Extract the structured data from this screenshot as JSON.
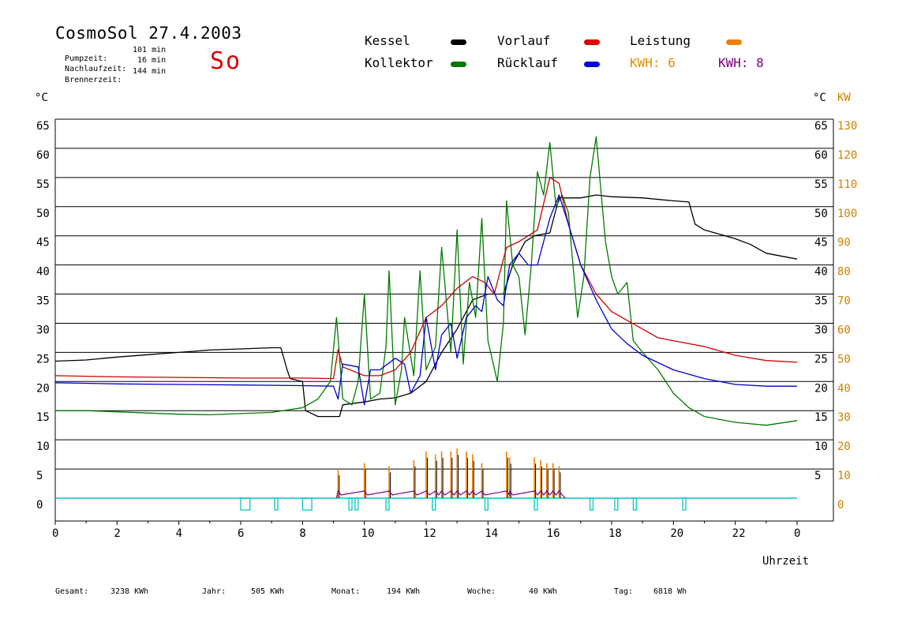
{
  "header": {
    "title": "CosmoSol 27.4.2003",
    "day": "So",
    "pumpzeit_label": "Pumpzeit:",
    "pumpzeit_value": "101 min",
    "nachlaufzeit_label": "Nachlaufzeit:",
    "nachlaufzeit_value": "16 min",
    "brennerzeit_label": "Brennerzeit:",
    "brennerzeit_value": "144 min"
  },
  "legend": {
    "kessel": "Kessel",
    "kollektor": "Kollektor",
    "vorlauf": "Vorlauf",
    "ruecklauf": "Rücklauf",
    "leistung": "Leistung",
    "kwh_orange": "KWH: 6",
    "kwh_purple": "KWH: 8"
  },
  "colors": {
    "kessel": "#000000",
    "kollektor": "#007a00",
    "vorlauf": "#cc0000",
    "ruecklauf": "#0000cc",
    "leistung": "#f08000",
    "kwh_purple": "#800080",
    "pump": "#00c8c8",
    "kw_axis": "#d08000"
  },
  "footer": {
    "gesamt_label": "Gesamt:",
    "gesamt_value": "3238 KWh",
    "jahr_label": "Jahr:",
    "jahr_value": "505 KWh",
    "monat_label": "Monat:",
    "monat_value": "194 KWh",
    "woche_label": "Woche:",
    "woche_value": "40 KWh",
    "tag_label": "Tag:",
    "tag_value": "6818 Wh"
  },
  "chart_data": {
    "type": "line",
    "xlabel": "Uhrzeit",
    "ylabel_left": "°C",
    "ylabel_right_c": "°C",
    "ylabel_right_kw": "KW",
    "xlim": [
      0,
      24
    ],
    "ylim": [
      0,
      65
    ],
    "x_ticks": [
      "0",
      "2",
      "4",
      "6",
      "8",
      "10",
      "12",
      "14",
      "16",
      "18",
      "20",
      "22",
      "0"
    ],
    "y_ticks_left": [
      "0",
      "5",
      "10",
      "15",
      "20",
      "25",
      "30",
      "35",
      "40",
      "45",
      "50",
      "55",
      "60",
      "65"
    ],
    "y_ticks_right_c": [
      "5",
      "10",
      "15",
      "20",
      "25",
      "30",
      "35",
      "40",
      "45",
      "50",
      "55",
      "60",
      "65"
    ],
    "y_ticks_right_kw": [
      "0",
      "10",
      "20",
      "30",
      "40",
      "50",
      "60",
      "70",
      "80",
      "90",
      "100",
      "110",
      "120",
      "130"
    ],
    "grid": true,
    "legend_position": "top",
    "series": [
      {
        "name": "Kessel",
        "color": "#000000",
        "points": [
          [
            0,
            23.5
          ],
          [
            1,
            23.7
          ],
          [
            2,
            24.2
          ],
          [
            3,
            24.6
          ],
          [
            4,
            25
          ],
          [
            5,
            25.4
          ],
          [
            6,
            25.6
          ],
          [
            7,
            25.8
          ],
          [
            7.3,
            25.8
          ],
          [
            7.5,
            22
          ],
          [
            7.6,
            20.5
          ],
          [
            8,
            20
          ],
          [
            8.1,
            15
          ],
          [
            8.5,
            14
          ],
          [
            9.2,
            14
          ],
          [
            9.3,
            16
          ],
          [
            10,
            16.5
          ],
          [
            10.5,
            17
          ],
          [
            11,
            17.2
          ],
          [
            11.5,
            18
          ],
          [
            12,
            20
          ],
          [
            12.5,
            25
          ],
          [
            13,
            29
          ],
          [
            13.5,
            34
          ],
          [
            14,
            35
          ],
          [
            14.5,
            35
          ],
          [
            14.8,
            40
          ],
          [
            15.2,
            44
          ],
          [
            15.5,
            45
          ],
          [
            16,
            45.5
          ],
          [
            16.3,
            51.5
          ],
          [
            17,
            51.5
          ],
          [
            17.5,
            52
          ],
          [
            18,
            51.7
          ],
          [
            19,
            51.5
          ],
          [
            20,
            51
          ],
          [
            20.5,
            50.8
          ],
          [
            20.7,
            47
          ],
          [
            21,
            46
          ],
          [
            22,
            44.5
          ],
          [
            22.5,
            43.5
          ],
          [
            23,
            42
          ],
          [
            24,
            41
          ]
        ]
      },
      {
        "name": "Kollektor",
        "color": "#007a00",
        "points": [
          [
            0,
            15
          ],
          [
            1,
            15
          ],
          [
            2,
            14.8
          ],
          [
            3,
            14.6
          ],
          [
            4,
            14.4
          ],
          [
            5,
            14.3
          ],
          [
            6,
            14.5
          ],
          [
            7,
            14.7
          ],
          [
            8,
            15.5
          ],
          [
            8.5,
            17
          ],
          [
            8.9,
            20
          ],
          [
            9.1,
            31
          ],
          [
            9.3,
            17
          ],
          [
            9.6,
            16
          ],
          [
            9.8,
            20
          ],
          [
            10,
            35
          ],
          [
            10.2,
            17
          ],
          [
            10.5,
            18
          ],
          [
            10.7,
            26
          ],
          [
            10.8,
            39
          ],
          [
            11,
            16
          ],
          [
            11.2,
            22
          ],
          [
            11.3,
            31
          ],
          [
            11.6,
            21
          ],
          [
            11.8,
            39
          ],
          [
            12,
            22
          ],
          [
            12.3,
            26
          ],
          [
            12.5,
            43
          ],
          [
            12.8,
            25
          ],
          [
            13,
            46
          ],
          [
            13.2,
            23
          ],
          [
            13.4,
            37
          ],
          [
            13.6,
            31
          ],
          [
            13.8,
            48
          ],
          [
            14,
            27
          ],
          [
            14.3,
            20
          ],
          [
            14.5,
            30
          ],
          [
            14.6,
            51
          ],
          [
            14.8,
            40
          ],
          [
            15,
            38
          ],
          [
            15.2,
            28
          ],
          [
            15.4,
            40
          ],
          [
            15.6,
            56
          ],
          [
            15.8,
            52
          ],
          [
            16,
            61
          ],
          [
            16.2,
            50
          ],
          [
            16.4,
            52
          ],
          [
            16.6,
            49
          ],
          [
            16.9,
            31
          ],
          [
            17.1,
            38
          ],
          [
            17.3,
            55
          ],
          [
            17.5,
            62
          ],
          [
            17.8,
            44
          ],
          [
            18,
            38
          ],
          [
            18.2,
            35
          ],
          [
            18.5,
            37
          ],
          [
            18.7,
            27
          ],
          [
            19,
            25
          ],
          [
            19.5,
            22
          ],
          [
            20,
            18
          ],
          [
            20.5,
            15.5
          ],
          [
            21,
            14
          ],
          [
            22,
            13
          ],
          [
            23,
            12.5
          ],
          [
            24,
            13.3
          ]
        ]
      },
      {
        "name": "Vorlauf",
        "color": "#cc0000",
        "points": [
          [
            0,
            21
          ],
          [
            2,
            20.8
          ],
          [
            4,
            20.7
          ],
          [
            6,
            20.6
          ],
          [
            8,
            20.6
          ],
          [
            9,
            20.5
          ],
          [
            9.15,
            25.5
          ],
          [
            9.3,
            22.5
          ],
          [
            10,
            21
          ],
          [
            10.5,
            21
          ],
          [
            11,
            22
          ],
          [
            11.5,
            25
          ],
          [
            12,
            31
          ],
          [
            12.5,
            33
          ],
          [
            13,
            36
          ],
          [
            13.5,
            38
          ],
          [
            13.9,
            37
          ],
          [
            14.2,
            35
          ],
          [
            14.6,
            43
          ],
          [
            15,
            44
          ],
          [
            15.3,
            45
          ],
          [
            15.6,
            46
          ],
          [
            16,
            55
          ],
          [
            16.3,
            54
          ],
          [
            16.6,
            47
          ],
          [
            17,
            40
          ],
          [
            17.5,
            35
          ],
          [
            18,
            32
          ],
          [
            18.5,
            30.5
          ],
          [
            19,
            29
          ],
          [
            19.5,
            27.5
          ],
          [
            20,
            27
          ],
          [
            21,
            26
          ],
          [
            22,
            24.5
          ],
          [
            23,
            23.6
          ],
          [
            24,
            23.3
          ]
        ]
      },
      {
        "name": "Rücklauf",
        "color": "#0000cc",
        "points": [
          [
            0,
            19.8
          ],
          [
            2,
            19.6
          ],
          [
            4,
            19.5
          ],
          [
            6,
            19.4
          ],
          [
            8,
            19.3
          ],
          [
            9,
            19.2
          ],
          [
            9.15,
            17
          ],
          [
            9.3,
            23
          ],
          [
            9.8,
            22.5
          ],
          [
            10,
            16
          ],
          [
            10.2,
            22
          ],
          [
            10.5,
            22
          ],
          [
            11,
            24
          ],
          [
            11.3,
            23
          ],
          [
            11.5,
            18
          ],
          [
            11.8,
            21
          ],
          [
            12,
            31
          ],
          [
            12.3,
            22
          ],
          [
            12.5,
            28
          ],
          [
            12.8,
            30
          ],
          [
            13,
            24
          ],
          [
            13.3,
            31
          ],
          [
            13.6,
            33
          ],
          [
            13.8,
            32
          ],
          [
            14,
            38
          ],
          [
            14.3,
            34
          ],
          [
            14.5,
            33
          ],
          [
            14.7,
            40
          ],
          [
            15,
            42
          ],
          [
            15.3,
            40
          ],
          [
            15.6,
            40
          ],
          [
            16,
            48
          ],
          [
            16.3,
            52
          ],
          [
            16.6,
            47
          ],
          [
            17,
            40
          ],
          [
            17.5,
            34
          ],
          [
            18,
            29
          ],
          [
            18.5,
            26.5
          ],
          [
            19,
            24.5
          ],
          [
            20,
            22
          ],
          [
            21,
            20.5
          ],
          [
            22,
            19.5
          ],
          [
            23,
            19.2
          ],
          [
            24,
            19.2
          ]
        ]
      }
    ],
    "power_series": {
      "name": "Leistung",
      "unit": "KW",
      "peaks_x": [
        9.15,
        10,
        10.8,
        11.6,
        12,
        12.3,
        12.5,
        12.8,
        13,
        13.3,
        13.5,
        13.8,
        14.6,
        14.7,
        15.5,
        15.7,
        15.9,
        16.1,
        16.3
      ],
      "peaks_kw": [
        10,
        12,
        11,
        13,
        16,
        15,
        16,
        16,
        17,
        16,
        15,
        12,
        16,
        14,
        14,
        13,
        12,
        12,
        11
      ]
    },
    "pump_intervals": [
      [
        6,
        6.3
      ],
      [
        7.1,
        7.2
      ],
      [
        8,
        8.3
      ],
      [
        9.5,
        9.6
      ],
      [
        9.7,
        9.8
      ],
      [
        10.7,
        10.8
      ],
      [
        12.2,
        12.3
      ],
      [
        13.9,
        14
      ],
      [
        15.5,
        15.6
      ],
      [
        17.3,
        17.4
      ],
      [
        18.1,
        18.2
      ],
      [
        18.7,
        18.8
      ],
      [
        20.3,
        20.4
      ]
    ]
  }
}
